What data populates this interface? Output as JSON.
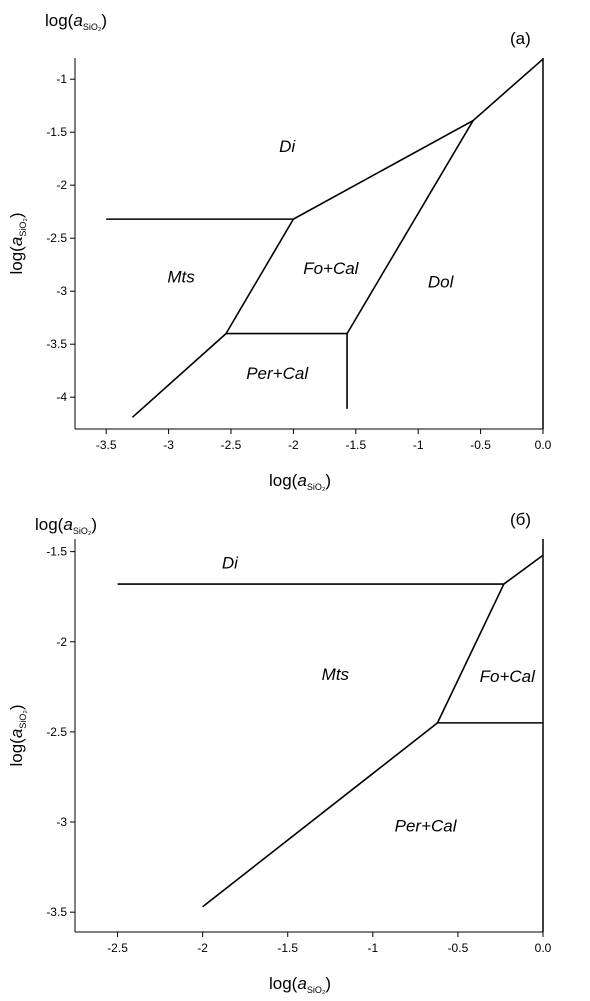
{
  "chart_data": [
    {
      "type": "line",
      "panel": "(a)",
      "color": "#000000",
      "axis_label": {
        "prefix": "log(",
        "var": "a",
        "sub": "SiO₂",
        "suffix": ")"
      },
      "xlim": [
        -3.75,
        0.0
      ],
      "xticks": [
        -3.5,
        -3.0,
        -2.5,
        -2.0,
        -1.5,
        -1.0,
        -0.5,
        {
          "value": 0,
          "label": "0.0"
        }
      ],
      "ylim": [
        -4.3,
        -0.8
      ],
      "yticks": [
        -1.0,
        -1.5,
        -2.0,
        -2.5,
        -3.0,
        -3.5,
        -4.0
      ],
      "segments": [
        {
          "x": [
            -3.5,
            -2.0
          ],
          "values": [
            -2.32,
            -2.32
          ]
        },
        {
          "x": [
            -2.0,
            -0.56,
            0
          ],
          "values": [
            -2.32,
            -1.39,
            -0.81
          ]
        },
        {
          "x": [
            -2.0,
            -2.54
          ],
          "values": [
            -2.32,
            -3.4
          ]
        },
        {
          "x": [
            -2.54,
            -1.57
          ],
          "values": [
            -3.4,
            -3.4
          ]
        },
        {
          "x": [
            -1.57,
            -1.57
          ],
          "values": [
            -3.4,
            -4.11
          ]
        },
        {
          "x": [
            -1.57,
            -0.56
          ],
          "values": [
            -3.4,
            -1.39
          ]
        },
        {
          "x": [
            -2.54,
            -3.29
          ],
          "values": [
            -3.4,
            -4.19
          ]
        }
      ],
      "annotations": [
        {
          "text": "Di",
          "x": -2.05,
          "y": -1.63
        },
        {
          "text": "Mts",
          "x": -2.9,
          "y": -2.86
        },
        {
          "text": "Fo+Cal",
          "x": -1.7,
          "y": -2.78
        },
        {
          "text": "Dol",
          "x": -0.82,
          "y": -2.91
        },
        {
          "text": "Per+Cal",
          "x": -2.13,
          "y": -3.77
        }
      ]
    },
    {
      "type": "line",
      "panel": "(б)",
      "color": "#000000",
      "axis_label": {
        "prefix": "log(",
        "var": "a",
        "sub": "SiO₂",
        "suffix": ")"
      },
      "xlim": [
        -2.75,
        0.0
      ],
      "xticks": [
        -2.5,
        -2.0,
        -1.5,
        -1.0,
        -0.5,
        {
          "value": 0,
          "label": "0.0"
        }
      ],
      "ylim": [
        -3.61,
        -1.43
      ],
      "yticks": [
        -1.5,
        -2.0,
        -2.5,
        -3.0,
        -3.5
      ],
      "segments": [
        {
          "x": [
            -2.5,
            -0.23
          ],
          "values": [
            -1.68,
            -1.68
          ]
        },
        {
          "x": [
            -0.23,
            0
          ],
          "values": [
            -1.68,
            -1.52
          ]
        },
        {
          "x": [
            -0.23,
            -0.62
          ],
          "values": [
            -1.68,
            -2.45
          ]
        },
        {
          "x": [
            -0.62,
            0
          ],
          "values": [
            -2.45,
            -2.45
          ]
        },
        {
          "x": [
            -0.62,
            -2.0
          ],
          "values": [
            -2.45,
            -3.47
          ]
        }
      ],
      "annotations": [
        {
          "text": "Di",
          "x": -1.84,
          "y": -1.56
        },
        {
          "text": "Mts",
          "x": -1.22,
          "y": -2.18
        },
        {
          "text": "Fo+Cal",
          "x": -0.21,
          "y": -2.19
        },
        {
          "text": "Per+Cal",
          "x": -0.69,
          "y": -3.02
        }
      ]
    }
  ]
}
